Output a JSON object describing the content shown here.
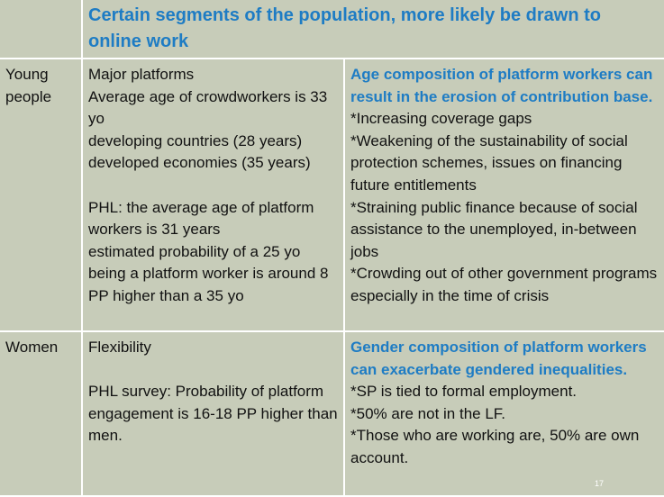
{
  "table": {
    "header": {
      "title": "Certain segments of the population, more likely be drawn to online work"
    },
    "rows": [
      {
        "label": "Young people",
        "middle": [
          [
            "Major platforms",
            "Average age of crowdworkers is 33 yo",
            "developing countries (28 years)",
            "developed economies (35 years)"
          ],
          [
            "PHL: the average age of platform workers is 31 years",
            "estimated probability of a 25 yo being a platform worker is around 8 PP higher than a 35 yo"
          ]
        ],
        "heading": "Age composition of platform workers can result in the erosion of contribution base.",
        "items": [
          "*Increasing coverage gaps",
          "*Weakening of the sustainability of social protection schemes, issues on financing future entitlements",
          "*Straining public finance because of social assistance to the unemployed, in-between jobs",
          "*Crowding out of  other government programs especially in the time of crisis"
        ]
      },
      {
        "label": "Women",
        "middle": [
          [
            "Flexibility"
          ],
          [
            "PHL survey: Probability of platform engagement is 16-18 PP higher than men."
          ]
        ],
        "heading": "Gender composition of platform workers can exacerbate gendered inequalities.",
        "items": [
          "*SP is tied to formal employment.",
          "*50% are not in the LF.",
          "*Those who are working are, 50% are own account."
        ]
      }
    ]
  },
  "page_number": "17"
}
